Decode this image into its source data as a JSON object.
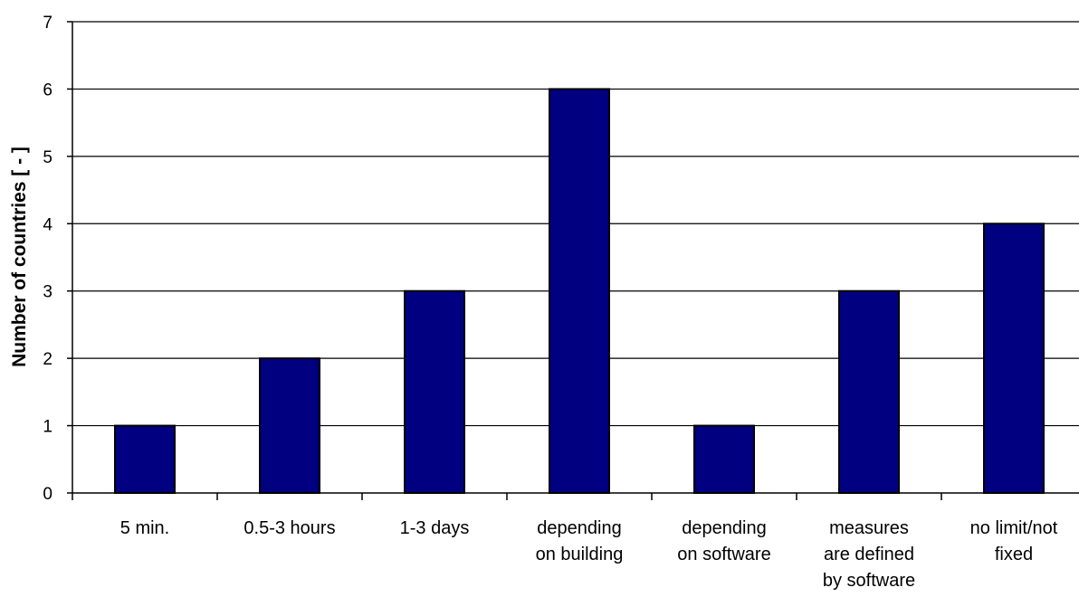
{
  "chart_data": {
    "type": "bar",
    "categories": [
      [
        "5 min."
      ],
      [
        "0.5-3 hours"
      ],
      [
        "1-3 days"
      ],
      [
        "depending",
        "on building"
      ],
      [
        "depending",
        "on software"
      ],
      [
        "measures",
        "are defined",
        "by software"
      ],
      [
        "no limit/not",
        "fixed"
      ]
    ],
    "values": [
      1,
      2,
      3,
      6,
      1,
      3,
      4
    ],
    "ylabel": "Number of countries  [ - ]",
    "xlabel": "",
    "ylim": [
      0,
      7
    ],
    "yticks": [
      0,
      1,
      2,
      3,
      4,
      5,
      6,
      7
    ],
    "grid": true,
    "bar_color": "#000080"
  }
}
